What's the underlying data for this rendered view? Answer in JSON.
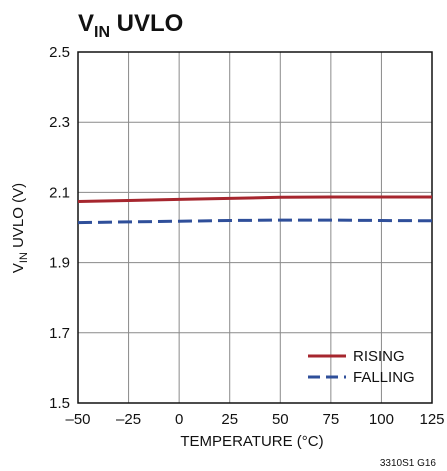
{
  "chart_data": {
    "type": "line",
    "title": {
      "main": "V",
      "sub": "IN",
      "rest": " UVLO"
    },
    "xlabel": "TEMPERATURE (°C)",
    "ylabel": {
      "main": "V",
      "sub": "IN",
      "rest": " UVLO (V)"
    },
    "xlim": [
      -50,
      125
    ],
    "ylim": [
      1.5,
      2.5
    ],
    "xticks": [
      -50,
      -25,
      0,
      25,
      50,
      75,
      100,
      125
    ],
    "xtick_labels": [
      "–50",
      "–25",
      "0",
      "25",
      "50",
      "75",
      "100",
      "125"
    ],
    "yticks": [
      1.5,
      1.7,
      1.9,
      2.1,
      2.3,
      2.5
    ],
    "ytick_labels": [
      "1.5",
      "1.7",
      "1.9",
      "2.1",
      "2.3",
      "2.5"
    ],
    "grid": true,
    "legend_position": "bottom-right",
    "series": [
      {
        "name": "RISING",
        "color": "#a6262e",
        "style": "solid",
        "x": [
          -50,
          -25,
          0,
          25,
          50,
          75,
          100,
          125
        ],
        "y": [
          2.074,
          2.077,
          2.08,
          2.083,
          2.086,
          2.087,
          2.087,
          2.087
        ]
      },
      {
        "name": "FALLING",
        "color": "#2f4f9a",
        "style": "dashed",
        "x": [
          -50,
          -25,
          0,
          25,
          50,
          75,
          100,
          125
        ],
        "y": [
          2.014,
          2.016,
          2.018,
          2.02,
          2.021,
          2.021,
          2.02,
          2.019
        ]
      }
    ],
    "figure_code": "3310S1 G16"
  }
}
